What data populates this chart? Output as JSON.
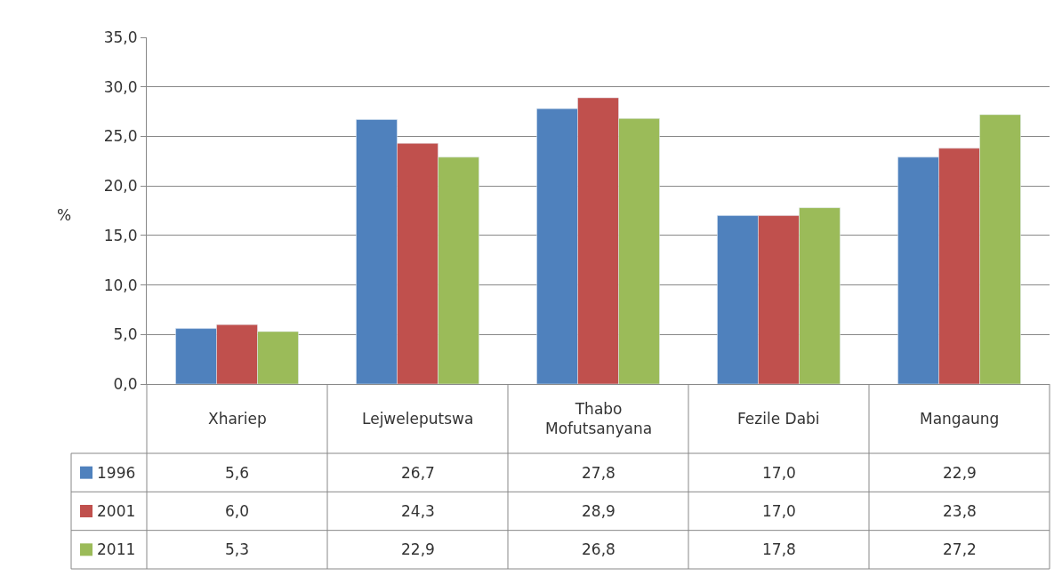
{
  "chart_data": {
    "type": "bar",
    "ylabel": "%",
    "categories": [
      "Xhariep",
      "Lejweleputswa",
      "Thabo Mofutsanyana",
      "Fezile Dabi",
      "Mangaung"
    ],
    "series": [
      {
        "name": "1996",
        "color": "#4f81bd",
        "values": [
          5.6,
          26.7,
          27.8,
          17.0,
          22.9
        ],
        "value_labels": [
          "5,6",
          "26,7",
          "27,8",
          "17,0",
          "22,9"
        ]
      },
      {
        "name": "2001",
        "color": "#c0504d",
        "values": [
          6.0,
          24.3,
          28.9,
          17.0,
          23.8
        ],
        "value_labels": [
          "6,0",
          "24,3",
          "28,9",
          "17,0",
          "23,8"
        ]
      },
      {
        "name": "2011",
        "color": "#9bbb59",
        "values": [
          5.3,
          22.9,
          26.8,
          17.8,
          27.2
        ],
        "value_labels": [
          "5,3",
          "22,9",
          "26,8",
          "17,8",
          "27,2"
        ]
      }
    ],
    "ylim": [
      0,
      35
    ],
    "yticks": [
      {
        "value": 0,
        "label": "0,0"
      },
      {
        "value": 5,
        "label": "5,0"
      },
      {
        "value": 10,
        "label": "10,0"
      },
      {
        "value": 15,
        "label": "15,0"
      },
      {
        "value": 20,
        "label": "20,0"
      },
      {
        "value": 25,
        "label": "25,0"
      },
      {
        "value": 30,
        "label": "30,0"
      },
      {
        "value": 35,
        "label": "35,0"
      }
    ],
    "grid": "y",
    "legend": "bottom left"
  }
}
